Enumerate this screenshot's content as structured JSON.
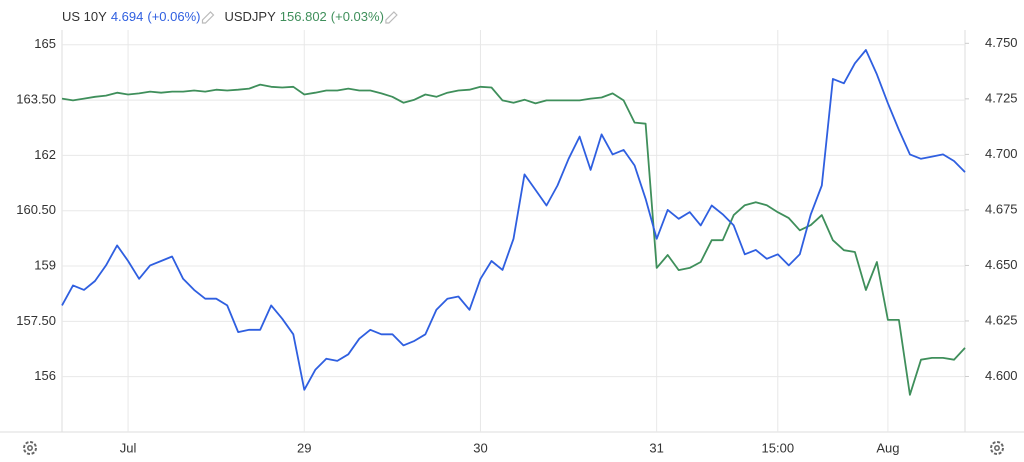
{
  "chart_data": {
    "type": "line",
    "categories": [
      null,
      null,
      null,
      null,
      null,
      null,
      "Jul",
      null,
      null,
      null,
      null,
      null,
      null,
      null,
      null,
      null,
      null,
      null,
      null,
      null,
      null,
      null,
      "29",
      null,
      null,
      null,
      null,
      null,
      null,
      null,
      null,
      null,
      null,
      null,
      null,
      null,
      null,
      null,
      "30",
      null,
      null,
      null,
      null,
      null,
      null,
      null,
      null,
      null,
      null,
      null,
      null,
      null,
      null,
      null,
      "31",
      null,
      null,
      null,
      null,
      null,
      null,
      null,
      null,
      null,
      null,
      "15:00",
      null,
      null,
      null,
      null,
      null,
      null,
      null,
      null,
      null,
      "Aug",
      null,
      null,
      null,
      null,
      null,
      null,
      null
    ],
    "series": [
      {
        "name": "US 10Y",
        "color": "#2f5fe0",
        "axis": "y2",
        "last": 4.694,
        "change": {
          "value": 0.06,
          "label": "(+0.06%)"
        },
        "values": [
          4.632,
          4.641,
          4.639,
          4.643,
          4.65,
          4.659,
          4.652,
          4.644,
          4.65,
          4.652,
          4.654,
          4.644,
          4.639,
          4.635,
          4.635,
          4.632,
          4.62,
          4.621,
          4.621,
          4.632,
          4.626,
          4.619,
          4.594,
          4.603,
          4.608,
          4.607,
          4.61,
          4.617,
          4.621,
          4.619,
          4.619,
          4.614,
          4.616,
          4.619,
          4.63,
          4.635,
          4.636,
          4.63,
          4.644,
          4.652,
          4.648,
          4.662,
          4.691,
          4.684,
          4.677,
          4.686,
          4.698,
          4.708,
          4.693,
          4.709,
          4.7,
          4.702,
          4.695,
          4.68,
          4.662,
          4.675,
          4.671,
          4.674,
          4.668,
          4.677,
          4.673,
          4.668,
          4.655,
          4.657,
          4.653,
          4.655,
          4.65,
          4.655,
          4.673,
          4.686,
          4.734,
          4.732,
          4.741,
          4.747,
          4.736,
          4.723,
          4.711,
          4.7,
          4.698,
          4.699,
          4.7,
          4.697,
          4.692
        ]
      },
      {
        "name": "USDJPY",
        "color": "#3f8f5b",
        "last": 156.802,
        "change": {
          "value": 0.03,
          "label": "(+0.03%)"
        },
        "values": [
          163.54,
          163.49,
          163.54,
          163.59,
          163.62,
          163.7,
          163.65,
          163.68,
          163.73,
          163.7,
          163.73,
          163.73,
          163.76,
          163.73,
          163.78,
          163.76,
          163.78,
          163.81,
          163.92,
          163.86,
          163.84,
          163.86,
          163.65,
          163.7,
          163.76,
          163.76,
          163.81,
          163.76,
          163.76,
          163.68,
          163.59,
          163.43,
          163.51,
          163.65,
          163.59,
          163.7,
          163.76,
          163.78,
          163.86,
          163.84,
          163.49,
          163.43,
          163.51,
          163.41,
          163.49,
          163.49,
          163.49,
          163.49,
          163.54,
          163.57,
          163.68,
          163.49,
          162.89,
          162.86,
          158.95,
          159.3,
          158.89,
          158.95,
          159.11,
          159.7,
          159.7,
          160.38,
          160.65,
          160.73,
          160.65,
          160.46,
          160.3,
          159.97,
          160.11,
          160.38,
          159.7,
          159.43,
          159.38,
          158.35,
          159.11,
          157.54,
          157.54,
          155.51,
          156.46,
          156.51,
          156.51,
          156.46,
          156.78
        ]
      }
    ],
    "ylim": [
      154.5,
      165.4
    ],
    "yticks": [
      156,
      {
        "value": 157.5,
        "label": "157.50"
      },
      159,
      {
        "value": 160.5,
        "label": "160.50"
      },
      162,
      {
        "value": 163.5,
        "label": "163.50"
      },
      165
    ],
    "y2lim": [
      4.575,
      4.756
    ],
    "y2ticks": [
      {
        "value": 4.6,
        "label": "4.600"
      },
      {
        "value": 4.625,
        "label": "4.625"
      },
      {
        "value": 4.65,
        "label": "4.650"
      },
      {
        "value": 4.675,
        "label": "4.675"
      },
      {
        "value": 4.7,
        "label": "4.700"
      },
      {
        "value": 4.725,
        "label": "4.725"
      },
      {
        "value": 4.75,
        "label": "4.750"
      }
    ],
    "grid": true
  }
}
